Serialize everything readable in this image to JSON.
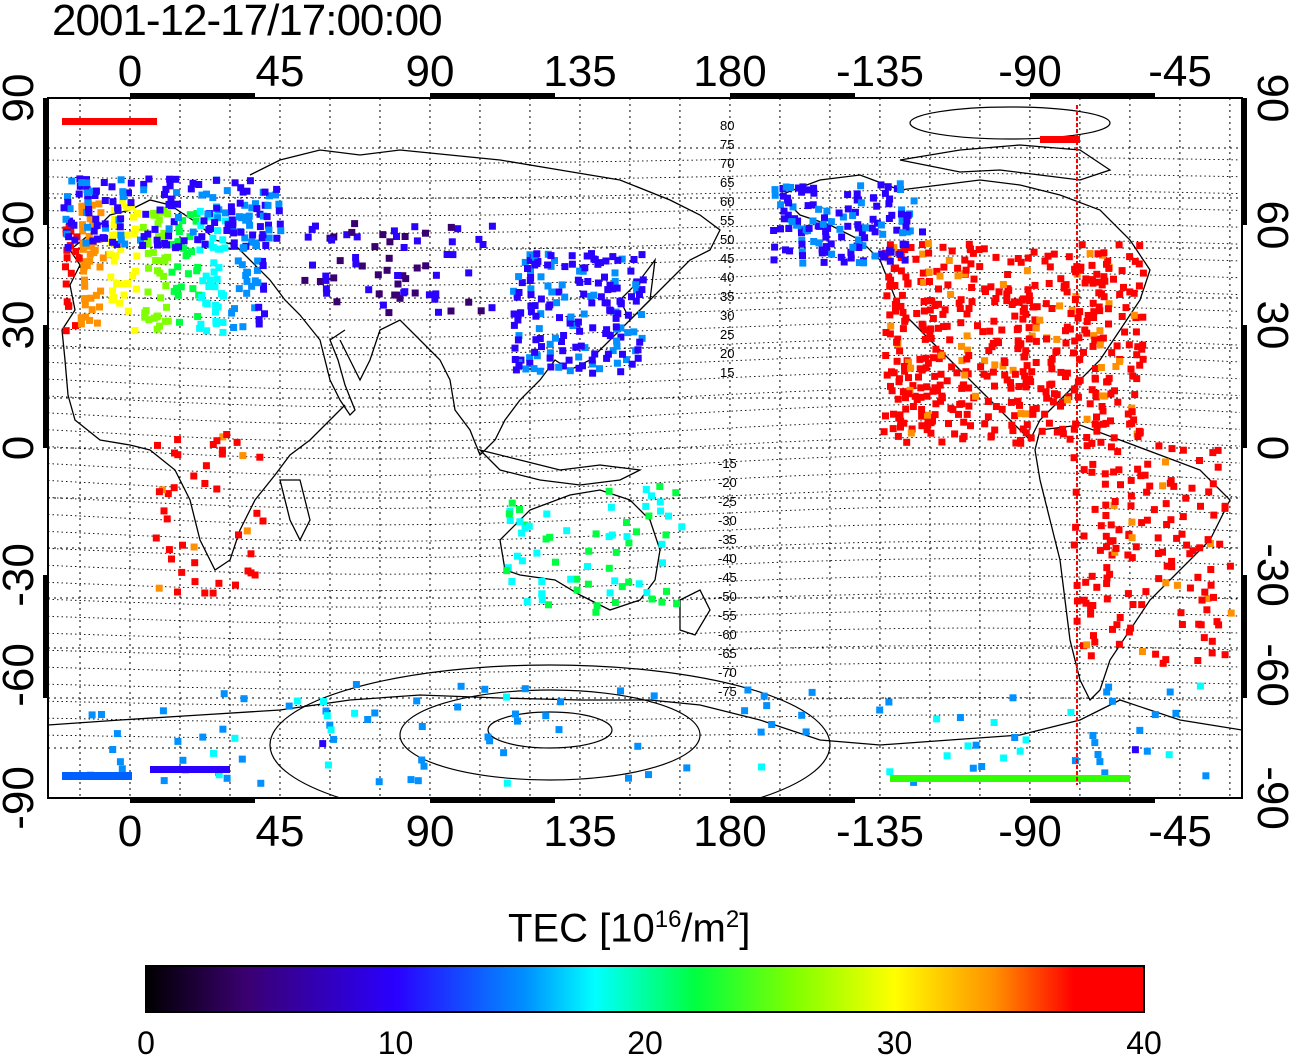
{
  "title": "2001-12-17/17:00:00",
  "map": {
    "top_axis_labels": [
      "0",
      "45",
      "90",
      "135",
      "180",
      "-135",
      "-90",
      "-45"
    ],
    "bottom_axis_labels": [
      "0",
      "45",
      "90",
      "135",
      "180",
      "-135",
      "-90",
      "-45"
    ],
    "left_axis_labels": [
      "90",
      "60",
      "30",
      "0",
      "-30",
      "-60",
      "-90"
    ],
    "right_axis_labels": [
      "90",
      "60",
      "30",
      "0",
      "-30",
      "-60",
      "-90"
    ],
    "lon_ticks": [
      0,
      45,
      90,
      135,
      180,
      225,
      270,
      315
    ],
    "lat_ticks": [
      90,
      60,
      30,
      0,
      -30,
      -60,
      -90
    ],
    "grid": true,
    "terminator_color": "#ff0000",
    "contour_labels_north": [
      "80",
      "75",
      "70",
      "65",
      "60",
      "55",
      "50",
      "45",
      "40",
      "35",
      "30",
      "25",
      "20",
      "15"
    ],
    "contour_labels_south": [
      "-15",
      "-20",
      "-25",
      "-30",
      "-35",
      "-40",
      "-45",
      "-50",
      "-55",
      "-60",
      "-65",
      "-70",
      "-75"
    ]
  },
  "colorbar": {
    "title_prefix": "TEC  [10",
    "title_exp": "16",
    "title_mid": "/m",
    "title_exp2": "2",
    "title_suffix": "]",
    "min": 0,
    "max": 40,
    "tick_labels": [
      "0",
      "10",
      "20",
      "30",
      "40"
    ],
    "colors": [
      "#000000",
      "#3a0070",
      "#2a00ff",
      "#0090ff",
      "#00ffff",
      "#00ff40",
      "#80ff00",
      "#ffff00",
      "#ff9000",
      "#ff0000"
    ]
  },
  "tec_regions": [
    {
      "name": "europe",
      "tec": 22
    },
    {
      "name": "scandinavia-russia",
      "tec": 10
    },
    {
      "name": "central-asia",
      "tec": 7
    },
    {
      "name": "east-asia",
      "tec": 10
    },
    {
      "name": "north-america",
      "tec": 40
    },
    {
      "name": "alaska-canada-west",
      "tec": 10
    },
    {
      "name": "south-america",
      "tec": 40
    },
    {
      "name": "australia",
      "tec": 20
    },
    {
      "name": "africa",
      "tec": 40
    },
    {
      "name": "antarctica",
      "tec": 14
    }
  ]
}
